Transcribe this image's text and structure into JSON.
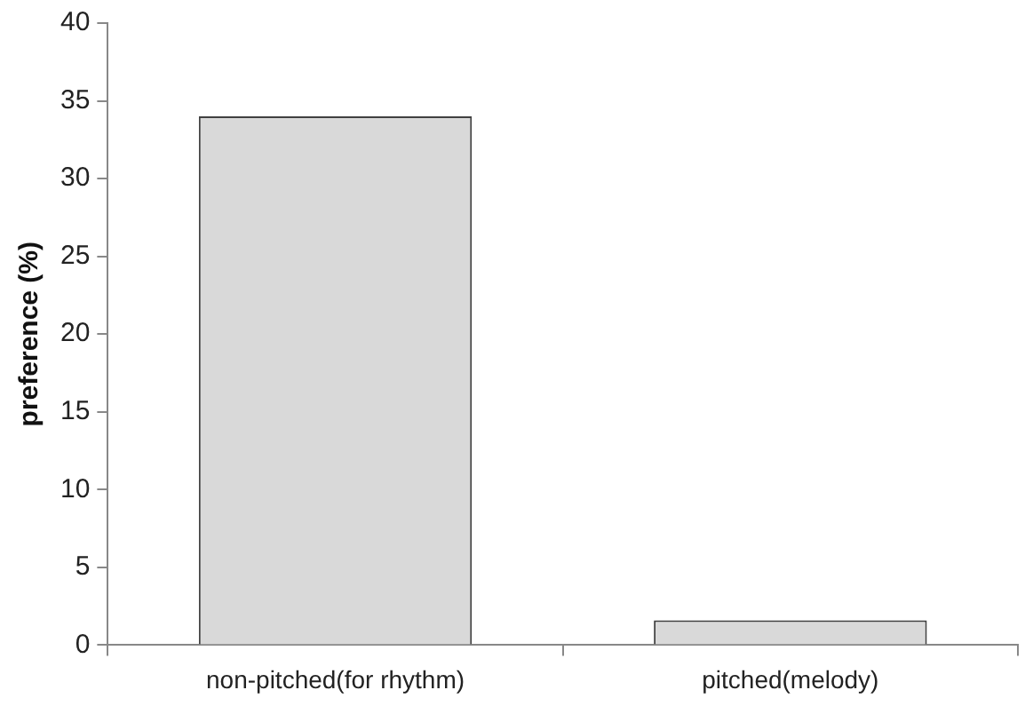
{
  "chart_data": {
    "type": "bar",
    "ylabel": "preference (%)",
    "categories": [
      "non-pitched(for rhythm)",
      "pitched(melody)"
    ],
    "values": [
      34,
      1.6
    ],
    "color": "#d9d9d9",
    "ylim": [
      0,
      40
    ],
    "yticks": [
      0,
      5,
      10,
      15,
      20,
      25,
      30,
      35,
      40
    ],
    "grid": false
  }
}
